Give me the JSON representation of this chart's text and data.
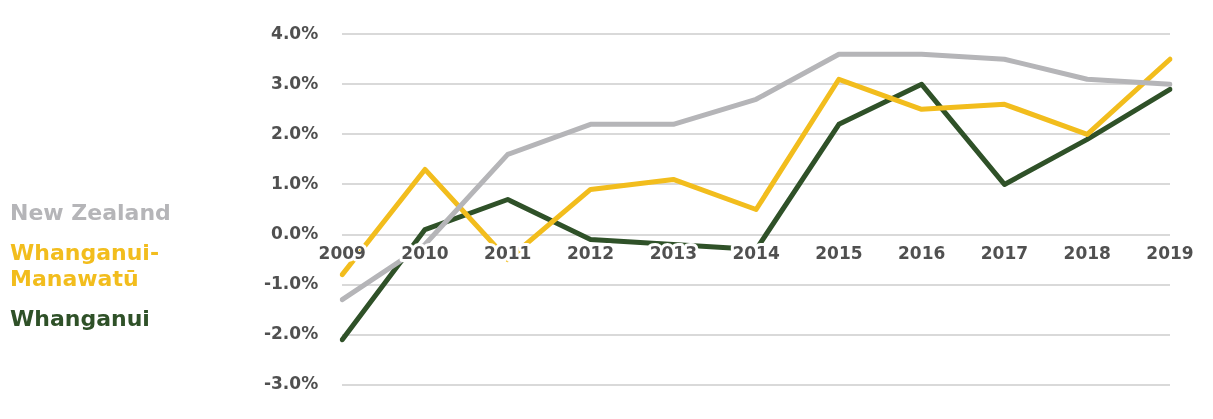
{
  "chart_data": {
    "type": "line",
    "categories": [
      "2009",
      "2010",
      "2011",
      "2012",
      "2013",
      "2014",
      "2015",
      "2016",
      "2017",
      "2018",
      "2019"
    ],
    "series": [
      {
        "name": "New Zealand",
        "color": "#b5b5b8",
        "values": [
          -1.3,
          -0.2,
          1.6,
          2.2,
          2.2,
          2.7,
          3.6,
          3.6,
          3.5,
          3.1,
          3.0
        ]
      },
      {
        "name": "Whanganui-Manawatū",
        "color": "#f2bd1d",
        "values": [
          -0.8,
          1.3,
          -0.5,
          0.9,
          1.1,
          0.5,
          3.1,
          2.5,
          2.6,
          2.0,
          3.5
        ]
      },
      {
        "name": "Whanganui",
        "color": "#2f5128",
        "values": [
          -2.1,
          0.1,
          0.7,
          -0.1,
          -0.2,
          -0.3,
          2.2,
          3.0,
          1.0,
          1.9,
          2.9
        ]
      }
    ],
    "ylim": [
      -3,
      4
    ],
    "yticks": [
      {
        "value": -3,
        "label": "-3.0%"
      },
      {
        "value": -2,
        "label": "-2.0%"
      },
      {
        "value": -1,
        "label": "-1.0%"
      },
      {
        "value": 0,
        "label": "0.0%"
      },
      {
        "value": 1,
        "label": "1.0%"
      },
      {
        "value": 2,
        "label": "2.0%"
      },
      {
        "value": 3,
        "label": "3.0%"
      },
      {
        "value": 4,
        "label": "4.0%"
      }
    ],
    "grid": "y",
    "legend": "left",
    "marker": "none",
    "line_style": "solid"
  }
}
